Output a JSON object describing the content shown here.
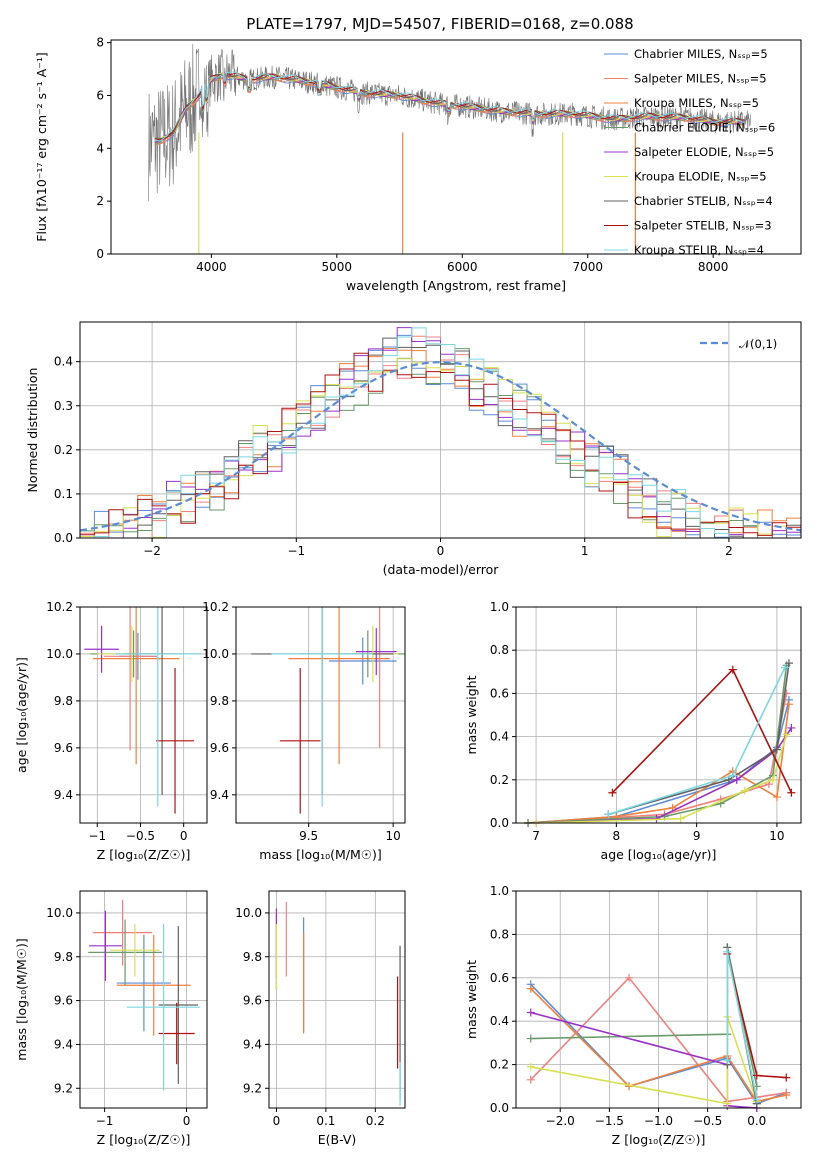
{
  "title": "PLATE=1797, MJD=54507, FIBERID=0168, z=0.088",
  "colors": [
    "#5b8cd6",
    "#f08080",
    "#f0803c",
    "#6a9a6a",
    "#9a30c8",
    "#d8e050",
    "#606060",
    "#b01010",
    "#7ad8e0"
  ],
  "chart_data": [
    {
      "id": "spectrum",
      "type": "line",
      "xlabel": "wavelength [Angstrom, rest frame]",
      "ylabel": "Flux [fλ10⁻¹⁷ erg cm⁻² s⁻¹ A⁻¹]",
      "xlim": [
        3200,
        8700
      ],
      "ylim": [
        0,
        8.1
      ],
      "xticks": [
        "4000",
        "5000",
        "6000",
        "7000",
        "8000"
      ],
      "yticks": [
        "0",
        "2",
        "4",
        "6",
        "8"
      ],
      "grid": false,
      "legend": "top-right",
      "series": [
        {
          "name": "Chabrier MILES, Nₛₛₚ=5"
        },
        {
          "name": "Salpeter MILES, Nₛₛₚ=5"
        },
        {
          "name": "Kroupa MILES, Nₛₛₚ=5"
        },
        {
          "name": "Chabrier ELODIE, Nₛₛₚ=6"
        },
        {
          "name": "Salpeter ELODIE, Nₛₛₚ=5"
        },
        {
          "name": "Kroupa ELODIE, Nₛₛₚ=5"
        },
        {
          "name": "Chabrier STELIB, Nₛₛₚ=4"
        },
        {
          "name": "Salpeter STELIB, Nₛₛₚ=3"
        },
        {
          "name": "Kroupa STELIB, Nₛₛₚ=4"
        }
      ],
      "continuum": {
        "x": [
          3500,
          3600,
          3700,
          3800,
          3900,
          4000,
          4100,
          4300,
          4500,
          4800,
          5000,
          5200,
          5500,
          5800,
          6000,
          6300,
          6600,
          6900,
          7200,
          7500,
          7800,
          8000,
          8200,
          8300
        ],
        "y": [
          4.2,
          4.3,
          4.6,
          5.5,
          6.0,
          6.6,
          6.8,
          6.6,
          6.7,
          6.5,
          6.3,
          6.1,
          6.0,
          5.7,
          5.6,
          5.4,
          5.3,
          5.3,
          5.1,
          5.2,
          5.15,
          5.0,
          5.0,
          5.0
        ]
      }
    },
    {
      "id": "residuals",
      "type": "bar",
      "xlabel": "(data-model)/error",
      "ylabel": "Normed distribution",
      "xlim": [
        -2.5,
        2.5
      ],
      "ylim": [
        0,
        0.49
      ],
      "xticks": [
        "−2",
        "−1",
        "0",
        "1",
        "2"
      ],
      "yticks": [
        "0.0",
        "0.1",
        "0.2",
        "0.3",
        "0.4"
      ],
      "grid": true,
      "legend": "top-right",
      "legend_label": "𝒩(0,1)",
      "bin_edges_start": -2.5,
      "bin_width": 0.1,
      "values": [
        0.02,
        0.025,
        0.03,
        0.04,
        0.06,
        0.07,
        0.09,
        0.11,
        0.13,
        0.14,
        0.16,
        0.19,
        0.22,
        0.23,
        0.26,
        0.29,
        0.31,
        0.34,
        0.36,
        0.38,
        0.4,
        0.42,
        0.44,
        0.44,
        0.42,
        0.41,
        0.39,
        0.37,
        0.35,
        0.32,
        0.31,
        0.29,
        0.27,
        0.24,
        0.21,
        0.19,
        0.17,
        0.15,
        0.12,
        0.1,
        0.08,
        0.07,
        0.06,
        0.05,
        0.04,
        0.035,
        0.03,
        0.025,
        0.02,
        0.02
      ]
    },
    {
      "id": "age-vs-Z",
      "type": "scatter",
      "xlabel": "Z [log₁₀(Z/Z☉)]",
      "ylabel": "age  [log₁₀(age/yr)]",
      "xlim": [
        -1.2,
        0.27
      ],
      "ylim": [
        9.28,
        10.2
      ],
      "xticks": [
        -1,
        -0.5,
        0
      ],
      "yticks": [
        9.4,
        9.6,
        9.8,
        10.0,
        10.2
      ],
      "grid": true,
      "points": [
        {
          "x": -0.53,
          "y": 9.99,
          "xerr": 0.22,
          "yerr": 0.1
        },
        {
          "x": -0.62,
          "y": 9.99,
          "xerr": 0.3,
          "yerr": 0.4
        },
        {
          "x": -0.55,
          "y": 9.98,
          "xerr": 0.5,
          "yerr": 0.45
        },
        {
          "x": -0.58,
          "y": 10.0,
          "xerr": 0.5,
          "yerr": 0.1
        },
        {
          "x": -0.95,
          "y": 10.02,
          "xerr": 0.2,
          "yerr": 0.1
        },
        {
          "x": -0.6,
          "y": 10.0,
          "xerr": 0.4,
          "yerr": 0.12
        },
        {
          "x": -0.25,
          "y": 10.0,
          "xerr": 0.45,
          "yerr": 0.6
        },
        {
          "x": -0.1,
          "y": 9.63,
          "xerr": 0.22,
          "yerr": 0.31
        },
        {
          "x": -0.3,
          "y": 10.0,
          "xerr": 0.5,
          "yerr": 0.65
        }
      ]
    },
    {
      "id": "age-vs-mass",
      "type": "scatter",
      "xlabel": "mass [log₁₀(M/M☉)]",
      "ylabel": "",
      "xlim": [
        9.07,
        10.07
      ],
      "ylim": [
        9.28,
        10.2
      ],
      "xticks": [
        9.5,
        10.0
      ],
      "yticks": [
        9.4,
        9.6,
        9.8,
        10.0,
        10.2
      ],
      "grid": true,
      "points": [
        {
          "x": 9.82,
          "y": 9.97,
          "xerr": 0.2,
          "yerr": 0.1
        },
        {
          "x": 9.92,
          "y": 10.0,
          "xerr": 0.12,
          "yerr": 0.4
        },
        {
          "x": 9.68,
          "y": 9.98,
          "xerr": 0.3,
          "yerr": 0.45
        },
        {
          "x": 9.85,
          "y": 10.0,
          "xerr": 0.4,
          "yerr": 0.1
        },
        {
          "x": 9.9,
          "y": 10.01,
          "xerr": 0.12,
          "yerr": 0.1
        },
        {
          "x": 9.88,
          "y": 10.0,
          "xerr": 0.15,
          "yerr": 0.12
        },
        {
          "x": 9.58,
          "y": 10.0,
          "xerr": 0.42,
          "yerr": 0.6
        },
        {
          "x": 9.45,
          "y": 9.63,
          "xerr": 0.12,
          "yerr": 0.31
        },
        {
          "x": 9.58,
          "y": 10.0,
          "xerr": 0.3,
          "yerr": 0.65
        }
      ]
    },
    {
      "id": "weight-vs-age",
      "type": "line",
      "xlabel": "age  [log₁₀(age/yr)]",
      "ylabel": "mass weight",
      "xlim": [
        6.75,
        10.3
      ],
      "ylim": [
        0,
        1.0
      ],
      "xticks": [
        7,
        8,
        9,
        10
      ],
      "yticks": [
        0.0,
        0.2,
        0.4,
        0.6,
        0.8,
        1.0
      ],
      "grid": true,
      "series": [
        {
          "x": [
            6.9,
            8.0,
            9.5,
            10.0,
            10.15
          ],
          "y": [
            0.0,
            0.03,
            0.2,
            0.35,
            0.57
          ]
        },
        {
          "x": [
            6.9,
            8.6,
            9.3,
            9.9,
            10.12
          ],
          "y": [
            0.0,
            0.04,
            0.11,
            0.18,
            0.6
          ]
        },
        {
          "x": [
            6.9,
            8.0,
            8.7,
            9.45,
            10.0,
            10.15
          ],
          "y": [
            0.0,
            0.03,
            0.07,
            0.24,
            0.12,
            0.55
          ]
        },
        {
          "x": [
            6.9,
            8.6,
            9.3,
            9.95,
            10.12
          ],
          "y": [
            0.0,
            0.03,
            0.09,
            0.22,
            0.73
          ]
        },
        {
          "x": [
            7.0,
            8.5,
            9.5,
            10.0,
            10.18
          ],
          "y": [
            0.0,
            0.02,
            0.2,
            0.34,
            0.44
          ]
        },
        {
          "x": [
            7.0,
            8.8,
            9.6,
            9.95,
            10.12
          ],
          "y": [
            0.0,
            0.02,
            0.15,
            0.2,
            0.41
          ]
        },
        {
          "x": [
            7.9,
            9.4,
            10.0,
            10.15
          ],
          "y": [
            0.04,
            0.2,
            0.34,
            0.74
          ]
        },
        {
          "x": [
            7.95,
            9.45,
            10.18
          ],
          "y": [
            0.14,
            0.71,
            0.14
          ]
        },
        {
          "x": [
            7.9,
            9.45,
            10.1
          ],
          "y": [
            0.04,
            0.22,
            0.72
          ]
        }
      ]
    },
    {
      "id": "mass-vs-Z",
      "type": "scatter",
      "xlabel": "Z [log₁₀(Z/Z☉)]",
      "ylabel": "mass [log₁₀(M/M☉)]",
      "xlim": [
        -1.3,
        0.25
      ],
      "ylim": [
        9.11,
        10.1
      ],
      "xticks": [
        -1,
        0
      ],
      "yticks": [
        9.2,
        9.4,
        9.6,
        9.8,
        10.0
      ],
      "grid": true,
      "points": [
        {
          "x": -0.52,
          "y": 9.68,
          "xerr": 0.33,
          "yerr": 0.22
        },
        {
          "x": -0.78,
          "y": 9.91,
          "xerr": 0.36,
          "yerr": 0.15
        },
        {
          "x": -0.4,
          "y": 9.67,
          "xerr": 0.45,
          "yerr": 0.23
        },
        {
          "x": -0.75,
          "y": 9.82,
          "xerr": 0.45,
          "yerr": 0.15
        },
        {
          "x": -0.99,
          "y": 9.85,
          "xerr": 0.2,
          "yerr": 0.16
        },
        {
          "x": -0.63,
          "y": 9.83,
          "xerr": 0.3,
          "yerr": 0.12
        },
        {
          "x": -0.1,
          "y": 9.58,
          "xerr": 0.24,
          "yerr": 0.36
        },
        {
          "x": -0.12,
          "y": 9.45,
          "xerr": 0.22,
          "yerr": 0.14
        },
        {
          "x": -0.28,
          "y": 9.57,
          "xerr": 0.45,
          "yerr": 0.38
        }
      ]
    },
    {
      "id": "mass-vs-ebv",
      "type": "scatter",
      "xlabel": "E(B-V)",
      "ylabel": "",
      "xlim": [
        -0.015,
        0.26
      ],
      "ylim": [
        9.11,
        10.1
      ],
      "xticks": [
        0.0,
        0.1,
        0.2
      ],
      "yticks": [
        9.2,
        9.4,
        9.6,
        9.8,
        10.0
      ],
      "grid": true,
      "points": [
        {
          "x": 0.055,
          "y": 9.72,
          "yerr": 0.26
        },
        {
          "x": 0.02,
          "y": 9.88,
          "yerr": 0.17
        },
        {
          "x": 0.055,
          "y": 9.68,
          "yerr": 0.23
        },
        {
          "x": 0.0,
          "y": 9.82,
          "yerr": 0.17
        },
        {
          "x": 0.0,
          "y": 9.86,
          "yerr": 0.16
        },
        {
          "x": 0.0,
          "y": 9.8,
          "yerr": 0.15
        },
        {
          "x": 0.25,
          "y": 9.5,
          "yerr": 0.35
        },
        {
          "x": 0.245,
          "y": 9.5,
          "yerr": 0.21
        },
        {
          "x": 0.25,
          "y": 9.22,
          "yerr": 0.1
        }
      ]
    },
    {
      "id": "weight-vs-Z",
      "type": "line",
      "xlabel": "Z [log₁₀(Z/Z☉)]",
      "ylabel": "mass weight",
      "xlim": [
        -2.45,
        0.45
      ],
      "ylim": [
        0,
        1.0
      ],
      "xticks": [
        "−2.0",
        "−1.5",
        "−1.0",
        "−0.5",
        "0.0"
      ],
      "xtick_values": [
        -2.0,
        -1.5,
        -1.0,
        -0.5,
        0.0
      ],
      "yticks": [
        0.0,
        0.2,
        0.4,
        0.6,
        0.8,
        1.0
      ],
      "grid": true,
      "series": [
        {
          "x": [
            -2.3,
            -1.3,
            -0.3,
            0.0,
            0.3
          ],
          "y": [
            0.57,
            0.1,
            0.23,
            0.02,
            0.07
          ]
        },
        {
          "x": [
            -2.3,
            -1.3,
            -0.3,
            0.0,
            0.3
          ],
          "y": [
            0.13,
            0.6,
            0.03,
            0.05,
            0.07
          ]
        },
        {
          "x": [
            -2.3,
            -1.3,
            -0.3,
            0.0,
            0.3
          ],
          "y": [
            0.55,
            0.1,
            0.24,
            0.03,
            0.06
          ]
        },
        {
          "x": [
            -2.3,
            -0.3,
            -0.3,
            0.0
          ],
          "y": [
            0.32,
            0.34,
            0.74,
            0.1
          ]
        },
        {
          "x": [
            -2.3,
            -0.3,
            -0.3,
            0.0
          ],
          "y": [
            0.44,
            0.2,
            0.01,
            0.0
          ]
        },
        {
          "x": [
            -2.3,
            -0.3,
            -0.3,
            0.0
          ],
          "y": [
            0.19,
            0.02,
            0.42,
            0.03
          ]
        },
        {
          "x": [
            -0.3,
            -0.3,
            0.0
          ],
          "y": [
            0.2,
            0.74,
            0.02
          ]
        },
        {
          "x": [
            -0.3,
            0.0,
            0.3
          ],
          "y": [
            0.71,
            0.15,
            0.14
          ]
        },
        {
          "x": [
            -0.3,
            -0.3,
            0.0
          ],
          "y": [
            0.22,
            0.72,
            0.04
          ]
        }
      ]
    }
  ]
}
